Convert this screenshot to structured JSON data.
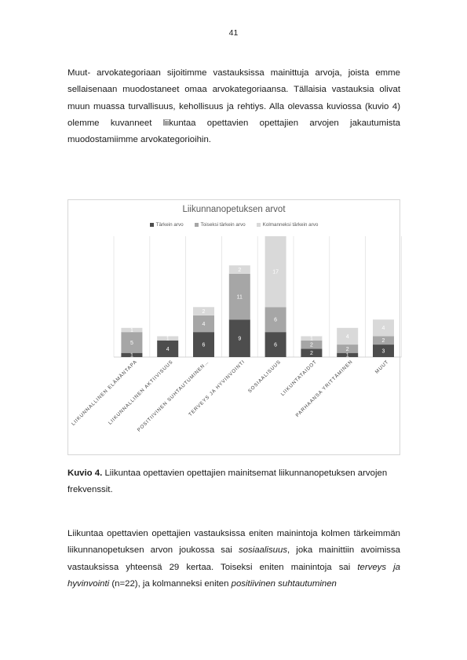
{
  "page_number": "41",
  "paragraph1": "Muut- arvokategoriaan sijoitimme vastauksissa mainittuja arvoja, joista emme sellaisenaan muodostaneet omaa arvokategoriaansa. Tällaisia vastauksia olivat muun muassa turvallisuus, kehollisuus ja rehtiys. Alla olevassa kuviossa (kuvio 4) olemme kuvanneet liikuntaa opettavien opettajien arvojen jakautumista muodostamiimme arvokategorioihin.",
  "caption": {
    "label": "Kuvio 4.",
    "text": " Liikuntaa opettavien opettajien mainitsemat liikunnanopetuksen arvojen frekvenssit."
  },
  "paragraph2": {
    "p1": "Liikuntaa opettavien opettajien vastauksissa eniten mainintoja kolmen tärkeimmän liikunnanopetuksen arvon joukossa sai ",
    "e1": "sosiaalisuus",
    "p2": ", joka mainittiin avoimissa vastauksissa yhteensä 29 kertaa. Toiseksi eniten mainintoja sai ",
    "e2": "terveys ja hyvinvointi",
    "p3": " (n=22), ja kolmanneksi eniten ",
    "e3": "positiivinen suhtautuminen"
  },
  "chart_data": {
    "type": "bar",
    "stacked": true,
    "title": "Liikunnanopetuksen arvot",
    "categories": [
      "LIIKUNNALLINEN ELÄMÄNTAPA",
      "LIIKUNNALLINEN AKTIIVISUUS",
      "POSITIIVINEN SUHTAUTUMINEN…",
      "TERVEYS JA HYVINVOINTI",
      "SOSIAALISUUS",
      "LIIKUNTATAIDOT",
      "PARHAANSA YRITTÄMINEN",
      "MUUT"
    ],
    "series": [
      {
        "name": "Tärkein arvo",
        "color": "#4d4d4d",
        "values": [
          1,
          4,
          6,
          9,
          6,
          2,
          1,
          3
        ]
      },
      {
        "name": "Toiseksi tärkein arvo",
        "color": "#a6a6a6",
        "values": [
          5,
          0,
          4,
          11,
          6,
          2,
          2,
          2
        ]
      },
      {
        "name": "Kolmanneksi tärkein arvo",
        "color": "#d9d9d9",
        "values": [
          1,
          1,
          2,
          2,
          17,
          1,
          4,
          4
        ]
      }
    ],
    "ylim": [
      0,
      29
    ],
    "grid": "vertical separators",
    "legend_position": "top"
  }
}
